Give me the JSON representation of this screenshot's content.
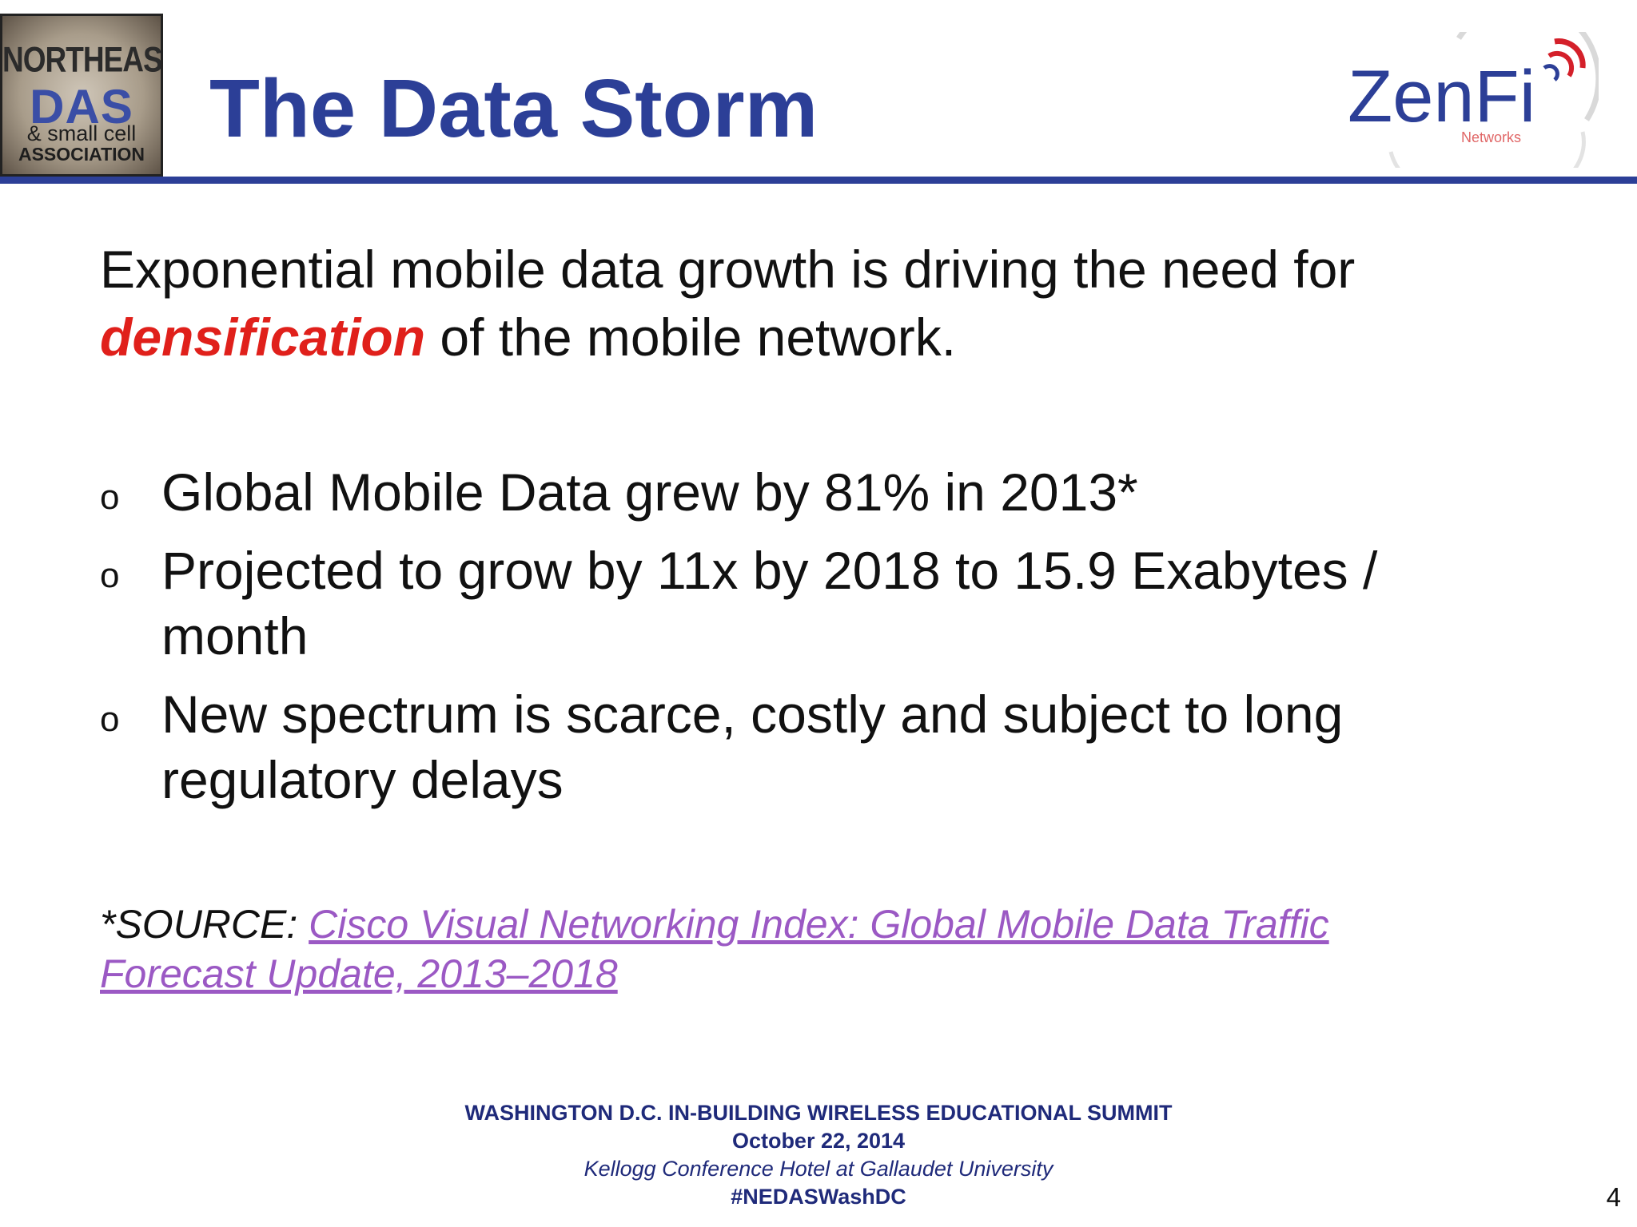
{
  "logo_left": {
    "line1": "NORTHEAST",
    "line2": "DAS",
    "line3": "& small cell",
    "line4": "ASSOCIATION"
  },
  "title": "The Data Storm",
  "logo_right": {
    "brand": "ZenFi",
    "sub": "Networks"
  },
  "intro": {
    "part1": "Exponential mobile data growth is driving the need for",
    "emphasis": "densification",
    "part2": " of the mobile network."
  },
  "bullets": [
    {
      "marker": "o",
      "text": "Global Mobile Data grew by 81% in 2013*"
    },
    {
      "marker": "o",
      "text": "Projected to grow by 11x by 2018 to 15.9 Exabytes / month"
    },
    {
      "marker": "o",
      "text": "New spectrum is scarce, costly and subject to long regulatory delays"
    }
  ],
  "source": {
    "label": "*SOURCE: ",
    "link_text": "Cisco Visual Networking Index: Global Mobile Data Traffic Forecast Update, 2013–2018"
  },
  "footer": {
    "line1": "WASHINGTON D.C. IN-BUILDING WIRELESS EDUCATIONAL SUMMIT",
    "line2": "October 22, 2014",
    "line3": "Kellogg Conference Hotel at Gallaudet University",
    "line4": "#NEDASWashDC"
  },
  "page_number": "4",
  "colors": {
    "title_blue": "#2c3f97",
    "emphasis_red": "#e0201b",
    "link_purple": "#9b59c4",
    "footer_navy": "#1f2a7a"
  }
}
